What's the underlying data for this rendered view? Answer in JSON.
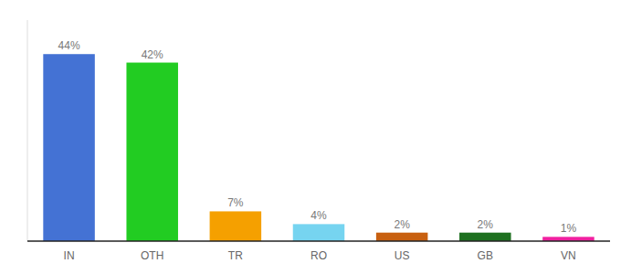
{
  "chart_data": {
    "type": "bar",
    "categories": [
      "IN",
      "OTH",
      "TR",
      "RO",
      "US",
      "GB",
      "VN"
    ],
    "values": [
      44,
      42,
      7,
      4,
      2,
      2,
      1
    ],
    "value_labels": [
      "44%",
      "42%",
      "7%",
      "4%",
      "2%",
      "2%",
      "1%"
    ],
    "colors": [
      "#4472d4",
      "#22cc22",
      "#f5a000",
      "#76d4f0",
      "#c86010",
      "#1e7020",
      "#f020a0"
    ],
    "ylim": [
      0,
      52
    ],
    "data_labels": true,
    "tick_labels": "x"
  }
}
